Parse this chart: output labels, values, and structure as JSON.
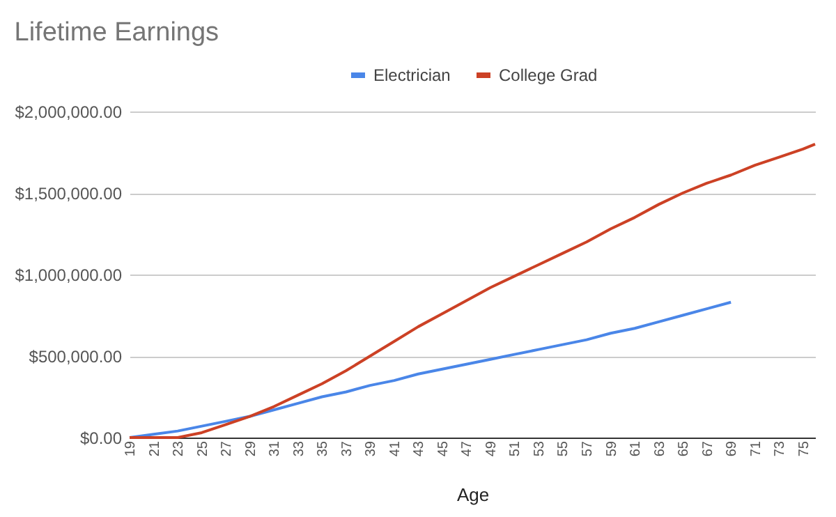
{
  "chart_data": {
    "type": "line",
    "title": "Lifetime Earnings",
    "xlabel": "Age",
    "xlim": [
      19,
      76
    ],
    "xticks": [
      19,
      21,
      23,
      25,
      27,
      29,
      31,
      33,
      35,
      37,
      39,
      41,
      43,
      45,
      47,
      49,
      51,
      53,
      55,
      57,
      59,
      61,
      63,
      65,
      67,
      69,
      71,
      73,
      75
    ],
    "ylim": [
      0,
      2000000
    ],
    "yticks": [
      {
        "value": 0,
        "label": "$0.00"
      },
      {
        "value": 500000,
        "label": "$500,000.00"
      },
      {
        "value": 1000000,
        "label": "$1,000,000.00"
      },
      {
        "value": 1500000,
        "label": "$1,500,000.00"
      },
      {
        "value": 2000000,
        "label": "$2,000,000.00"
      }
    ],
    "grid": "y",
    "legend": "top",
    "marker": "none",
    "line_style": "solid",
    "series": [
      {
        "name": "Electrician",
        "color": "#4a86e8",
        "x": [
          19,
          21,
          23,
          25,
          27,
          29,
          31,
          33,
          35,
          37,
          39,
          41,
          43,
          45,
          47,
          49,
          51,
          53,
          55,
          57,
          59,
          61,
          63,
          65,
          67,
          69
        ],
        "values": [
          0,
          20000,
          40000,
          70000,
          100000,
          130000,
          170000,
          210000,
          250000,
          280000,
          320000,
          350000,
          390000,
          420000,
          450000,
          480000,
          510000,
          540000,
          570000,
          600000,
          640000,
          670000,
          710000,
          750000,
          790000,
          830000
        ]
      },
      {
        "name": "College Grad",
        "color": "#cc4125",
        "x": [
          19,
          21,
          23,
          25,
          27,
          29,
          31,
          33,
          35,
          37,
          39,
          41,
          43,
          45,
          47,
          49,
          51,
          53,
          55,
          57,
          59,
          61,
          63,
          65,
          67,
          69,
          71,
          73,
          75,
          76
        ],
        "values": [
          0,
          0,
          0,
          30000,
          80000,
          130000,
          190000,
          260000,
          330000,
          410000,
          500000,
          590000,
          680000,
          760000,
          840000,
          920000,
          990000,
          1060000,
          1130000,
          1200000,
          1280000,
          1350000,
          1430000,
          1500000,
          1560000,
          1610000,
          1670000,
          1720000,
          1770000,
          1800000
        ]
      }
    ]
  }
}
